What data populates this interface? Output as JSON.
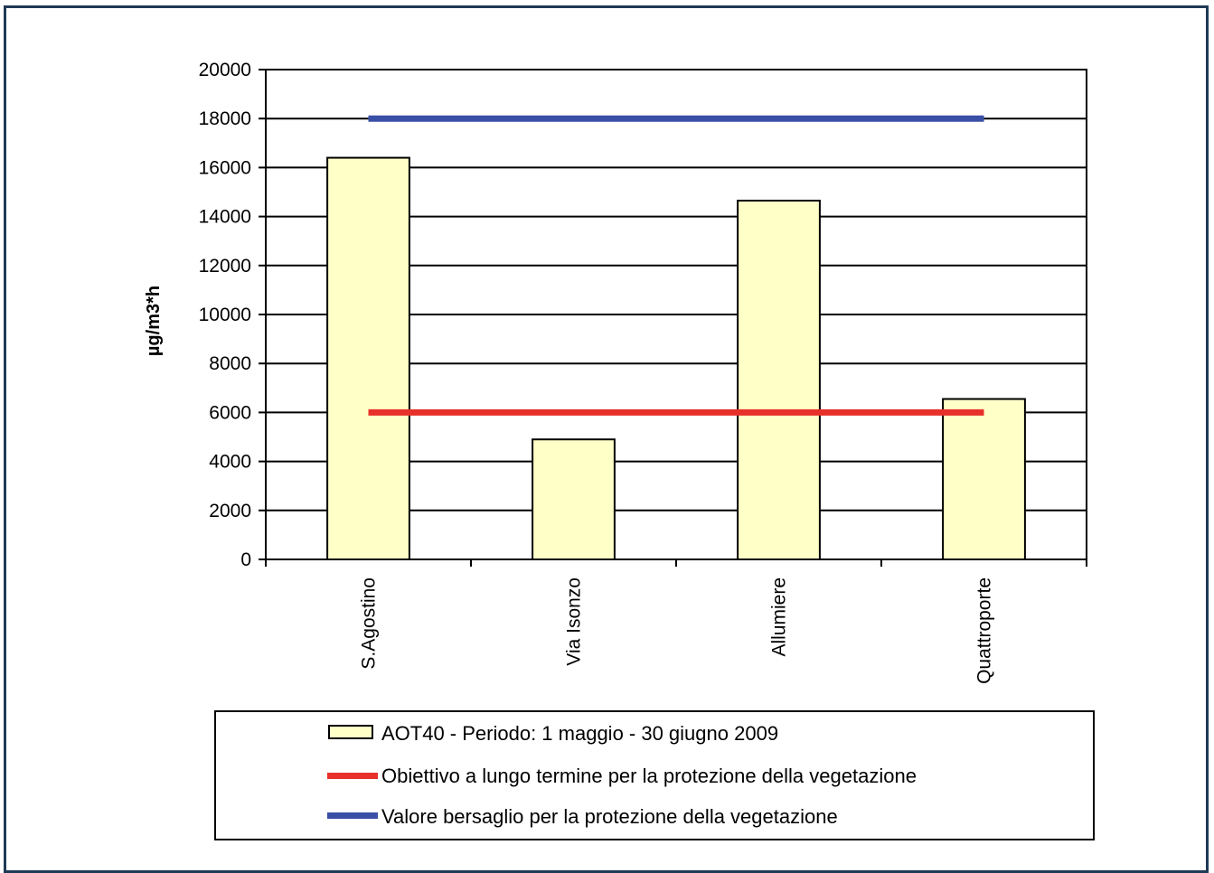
{
  "chart_data": {
    "type": "bar",
    "ylabel": "µg/m3*h",
    "ylim": [
      0,
      20000
    ],
    "ytick_step": 2000,
    "grid": true,
    "legend_position": "bottom",
    "categories": [
      "S.Agostino",
      "Via Isonzo",
      "Allumiere",
      "Quattroporte"
    ],
    "series": [
      {
        "name": "AOT40 - Periodo: 1 maggio - 30 giugno 2009",
        "kind": "bar",
        "color": "#ffffc8",
        "values": [
          16400,
          4900,
          14650,
          6550
        ]
      },
      {
        "name": "Obiettivo a lungo termine per la protezione della vegetazione",
        "kind": "line",
        "color": "#e8302a",
        "values": [
          6000,
          6000,
          6000,
          6000
        ]
      },
      {
        "name": "Valore bersaglio per la protezione della vegetazione",
        "kind": "line",
        "color": "#3a4fa6",
        "values": [
          18000,
          18000,
          18000,
          18000
        ]
      }
    ]
  }
}
